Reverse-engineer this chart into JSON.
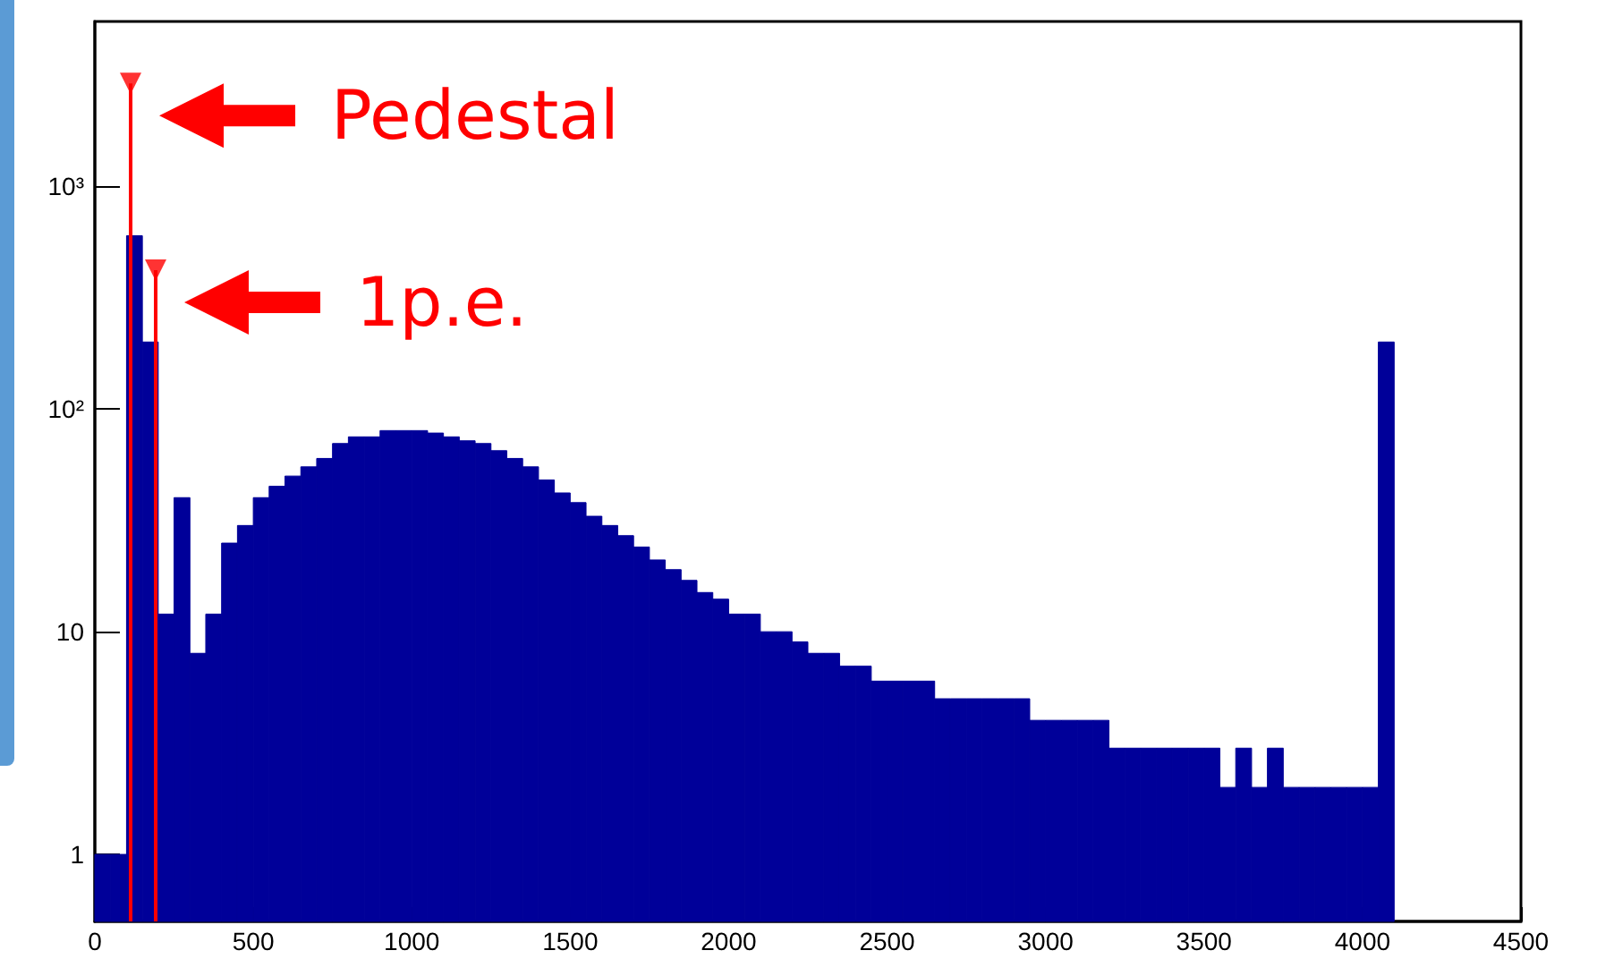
{
  "chart_data": {
    "type": "histogram",
    "log": "y",
    "grid": false,
    "xlim": [
      0,
      4500
    ],
    "xticks": [
      0,
      500,
      1000,
      1500,
      2000,
      2500,
      3000,
      3500,
      4000,
      4500
    ],
    "ylim": [
      0.5,
      5500
    ],
    "yticks": [
      1,
      10,
      {
        "value": 100,
        "label": "10²"
      },
      {
        "value": 1000,
        "label": "10³"
      }
    ],
    "annotations": [
      {
        "text": "Pedestal",
        "x": 113,
        "y": 2900
      },
      {
        "text": "1p.e.",
        "x": 192,
        "y": 420
      }
    ],
    "series": [
      {
        "color": "#000099",
        "bins": [
          0,
          50,
          100,
          150,
          200,
          250,
          300,
          350,
          400,
          450,
          500,
          550,
          600,
          650,
          700,
          750,
          800,
          850,
          900,
          950,
          1000,
          1050,
          1100,
          1150,
          1200,
          1250,
          1300,
          1350,
          1400,
          1450,
          1500,
          1550,
          1600,
          1650,
          1700,
          1750,
          1800,
          1850,
          1900,
          1950,
          2000,
          2050,
          2100,
          2150,
          2200,
          2250,
          2300,
          2350,
          2400,
          2450,
          2500,
          2550,
          2600,
          2650,
          2700,
          2750,
          2800,
          2850,
          2900,
          2950,
          3000,
          3050,
          3100,
          3150,
          3200,
          3250,
          3300,
          3350,
          3400,
          3450,
          3500,
          3550,
          3600,
          3650,
          3700,
          3750,
          3800,
          3850,
          3900,
          3950,
          4000,
          4050,
          4100
        ],
        "values": [
          1,
          1,
          600,
          200,
          12,
          40,
          8,
          12,
          25,
          30,
          40,
          45,
          50,
          55,
          60,
          70,
          75,
          75,
          80,
          80,
          80,
          78,
          75,
          72,
          70,
          65,
          60,
          55,
          48,
          42,
          38,
          33,
          30,
          27,
          24,
          21,
          19,
          17,
          15,
          14,
          12,
          12,
          10,
          10,
          9,
          8,
          8,
          7,
          7,
          6,
          6,
          6,
          6,
          5,
          5,
          5,
          5,
          5,
          5,
          4,
          4,
          4,
          4,
          4,
          3,
          3,
          3,
          3,
          3,
          3,
          3,
          2,
          3,
          2,
          3,
          2,
          2,
          2,
          2,
          2,
          2,
          200
        ]
      },
      {
        "type": "lollipop",
        "color": "#ff0000",
        "marker": "triangle",
        "x": [
          113,
          192
        ],
        "values": [
          2900,
          420
        ]
      }
    ]
  }
}
